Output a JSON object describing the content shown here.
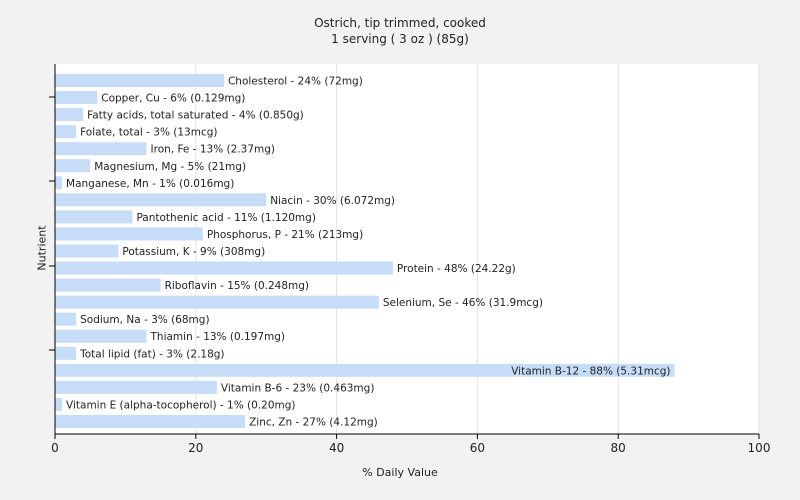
{
  "chart_data": {
    "type": "bar",
    "orientation": "horizontal",
    "title": "Ostrich, tip trimmed, cooked",
    "subtitle": "1 serving ( 3 oz ) (85g)",
    "xlabel": "% Daily Value",
    "ylabel": "Nutrient",
    "xlim": [
      0,
      100
    ],
    "xticks": [
      0,
      20,
      40,
      60,
      80,
      100
    ],
    "grid": true,
    "bar_color": "#c6dcf7",
    "categories": [
      "Cholesterol",
      "Copper, Cu",
      "Fatty acids, total saturated",
      "Folate, total",
      "Iron, Fe",
      "Magnesium, Mg",
      "Manganese, Mn",
      "Niacin",
      "Pantothenic acid",
      "Phosphorus, P",
      "Potassium, K",
      "Protein",
      "Riboflavin",
      "Selenium, Se",
      "Sodium, Na",
      "Thiamin",
      "Total lipid (fat)",
      "Vitamin B-12",
      "Vitamin B-6",
      "Vitamin E (alpha-tocopherol)",
      "Zinc, Zn"
    ],
    "values": [
      24,
      6,
      4,
      3,
      13,
      5,
      1,
      30,
      11,
      21,
      9,
      48,
      15,
      46,
      3,
      13,
      3,
      88,
      23,
      1,
      27
    ],
    "labels": [
      "Cholesterol - 24% (72mg)",
      "Copper, Cu - 6% (0.129mg)",
      "Fatty acids, total saturated - 4% (0.850g)",
      "Folate, total - 3% (13mcg)",
      "Iron, Fe - 13% (2.37mg)",
      "Magnesium, Mg - 5% (21mg)",
      "Manganese, Mn - 1% (0.016mg)",
      "Niacin - 30% (6.072mg)",
      "Pantothenic acid - 11% (1.120mg)",
      "Phosphorus, P - 21% (213mg)",
      "Potassium, K - 9% (308mg)",
      "Protein - 48% (24.22g)",
      "Riboflavin - 15% (0.248mg)",
      "Selenium, Se - 46% (31.9mcg)",
      "Sodium, Na - 3% (68mg)",
      "Thiamin - 13% (0.197mg)",
      "Total lipid (fat) - 3% (2.18g)",
      "Vitamin B-12 - 88% (5.31mcg)",
      "Vitamin B-6 - 23% (0.463mg)",
      "Vitamin E (alpha-tocopherol) - 1% (0.20mg)",
      "Zinc, Zn - 27% (4.12mg)"
    ],
    "inside_label_indices": [
      17
    ]
  }
}
